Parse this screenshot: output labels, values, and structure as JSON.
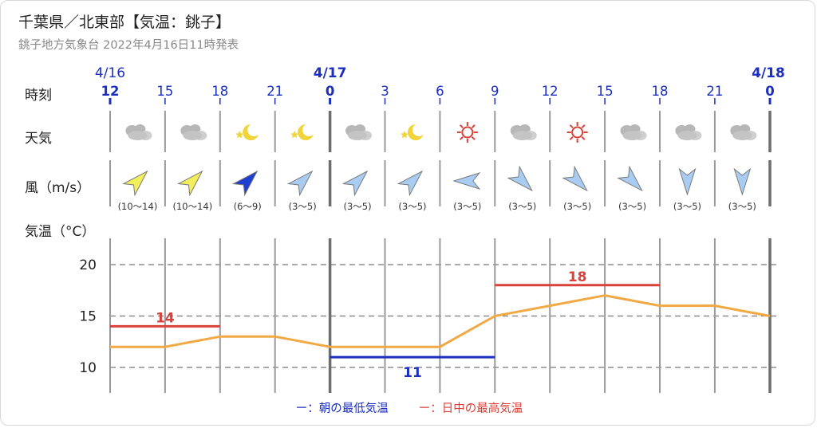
{
  "header": {
    "title": "千葉県／北東部【気温：銚子】",
    "subtitle": "銚子地方気象台 2022年4月16日11時発表"
  },
  "rows": {
    "time_label": "時刻",
    "weather_label": "天気",
    "wind_label": "風（m/s）",
    "temp_label": "気温（°C）"
  },
  "dates": [
    {
      "label": "4/16",
      "slot": 0,
      "bold": false
    },
    {
      "label": "4/17",
      "slot": 4,
      "bold": true
    },
    {
      "label": "4/18",
      "slot": 12,
      "bold": true
    }
  ],
  "hours": [
    "12",
    "15",
    "18",
    "21",
    "0",
    "3",
    "6",
    "9",
    "12",
    "15",
    "18",
    "21",
    "0"
  ],
  "weather": [
    "cloudy",
    "cloudy",
    "clear-night",
    "clear-night",
    "cloudy",
    "clear-night",
    "sunny",
    "cloudy",
    "sunny",
    "cloudy",
    "cloudy",
    "cloudy"
  ],
  "wind": [
    {
      "range": "(10〜14)",
      "dir": "SW",
      "color": "#f2ee5c"
    },
    {
      "range": "(10〜14)",
      "dir": "SW",
      "color": "#f2ee5c"
    },
    {
      "range": "(6〜9)",
      "dir": "SW",
      "color": "#1f3fd0"
    },
    {
      "range": "(3〜5)",
      "dir": "SW",
      "color": "#a9cdf2"
    },
    {
      "range": "(3〜5)",
      "dir": "SW",
      "color": "#a9cdf2"
    },
    {
      "range": "(3〜5)",
      "dir": "SW",
      "color": "#a9cdf2"
    },
    {
      "range": "(3〜5)",
      "dir": "E",
      "color": "#a9cdf2"
    },
    {
      "range": "(3〜5)",
      "dir": "NW",
      "color": "#a9cdf2"
    },
    {
      "range": "(3〜5)",
      "dir": "NW",
      "color": "#a9cdf2"
    },
    {
      "range": "(3〜5)",
      "dir": "NW",
      "color": "#a9cdf2"
    },
    {
      "range": "(3〜5)",
      "dir": "N",
      "color": "#a9cdf2"
    },
    {
      "range": "(3〜5)",
      "dir": "N",
      "color": "#a9cdf2"
    }
  ],
  "chart_data": {
    "type": "line",
    "x": [
      "4/16 12",
      "15",
      "18",
      "21",
      "4/17 0",
      "3",
      "6",
      "9",
      "12",
      "15",
      "18",
      "21",
      "4/18 0"
    ],
    "series": [
      {
        "values": [
          12,
          12,
          13,
          13,
          12,
          12,
          12,
          15,
          16,
          17,
          16,
          16,
          15
        ],
        "color": "#f0a944"
      }
    ],
    "min_temp": {
      "label": "11",
      "value": 11,
      "from_slot": 4,
      "to_slot": 7,
      "color": "#1c2fc0"
    },
    "max_temps": [
      {
        "label": "14",
        "value": 14,
        "from_slot": 0,
        "to_slot": 2,
        "color": "#d9413a"
      },
      {
        "label": "18",
        "value": 18,
        "from_slot": 7,
        "to_slot": 10,
        "color": "#d9413a"
      }
    ],
    "yticks": [
      10,
      15,
      20
    ],
    "ylim": [
      7,
      23
    ],
    "ylabel": "気温（°C）",
    "grid": true
  },
  "legend": {
    "low": "ー：朝の最低気温",
    "high": "ー：日中の最高気温"
  },
  "colors": {
    "date_blue": "#1c2fc0",
    "grid_dark": "#8a8a8a",
    "day_line": "#6e6e6e",
    "temp_line": "#f0a944"
  }
}
